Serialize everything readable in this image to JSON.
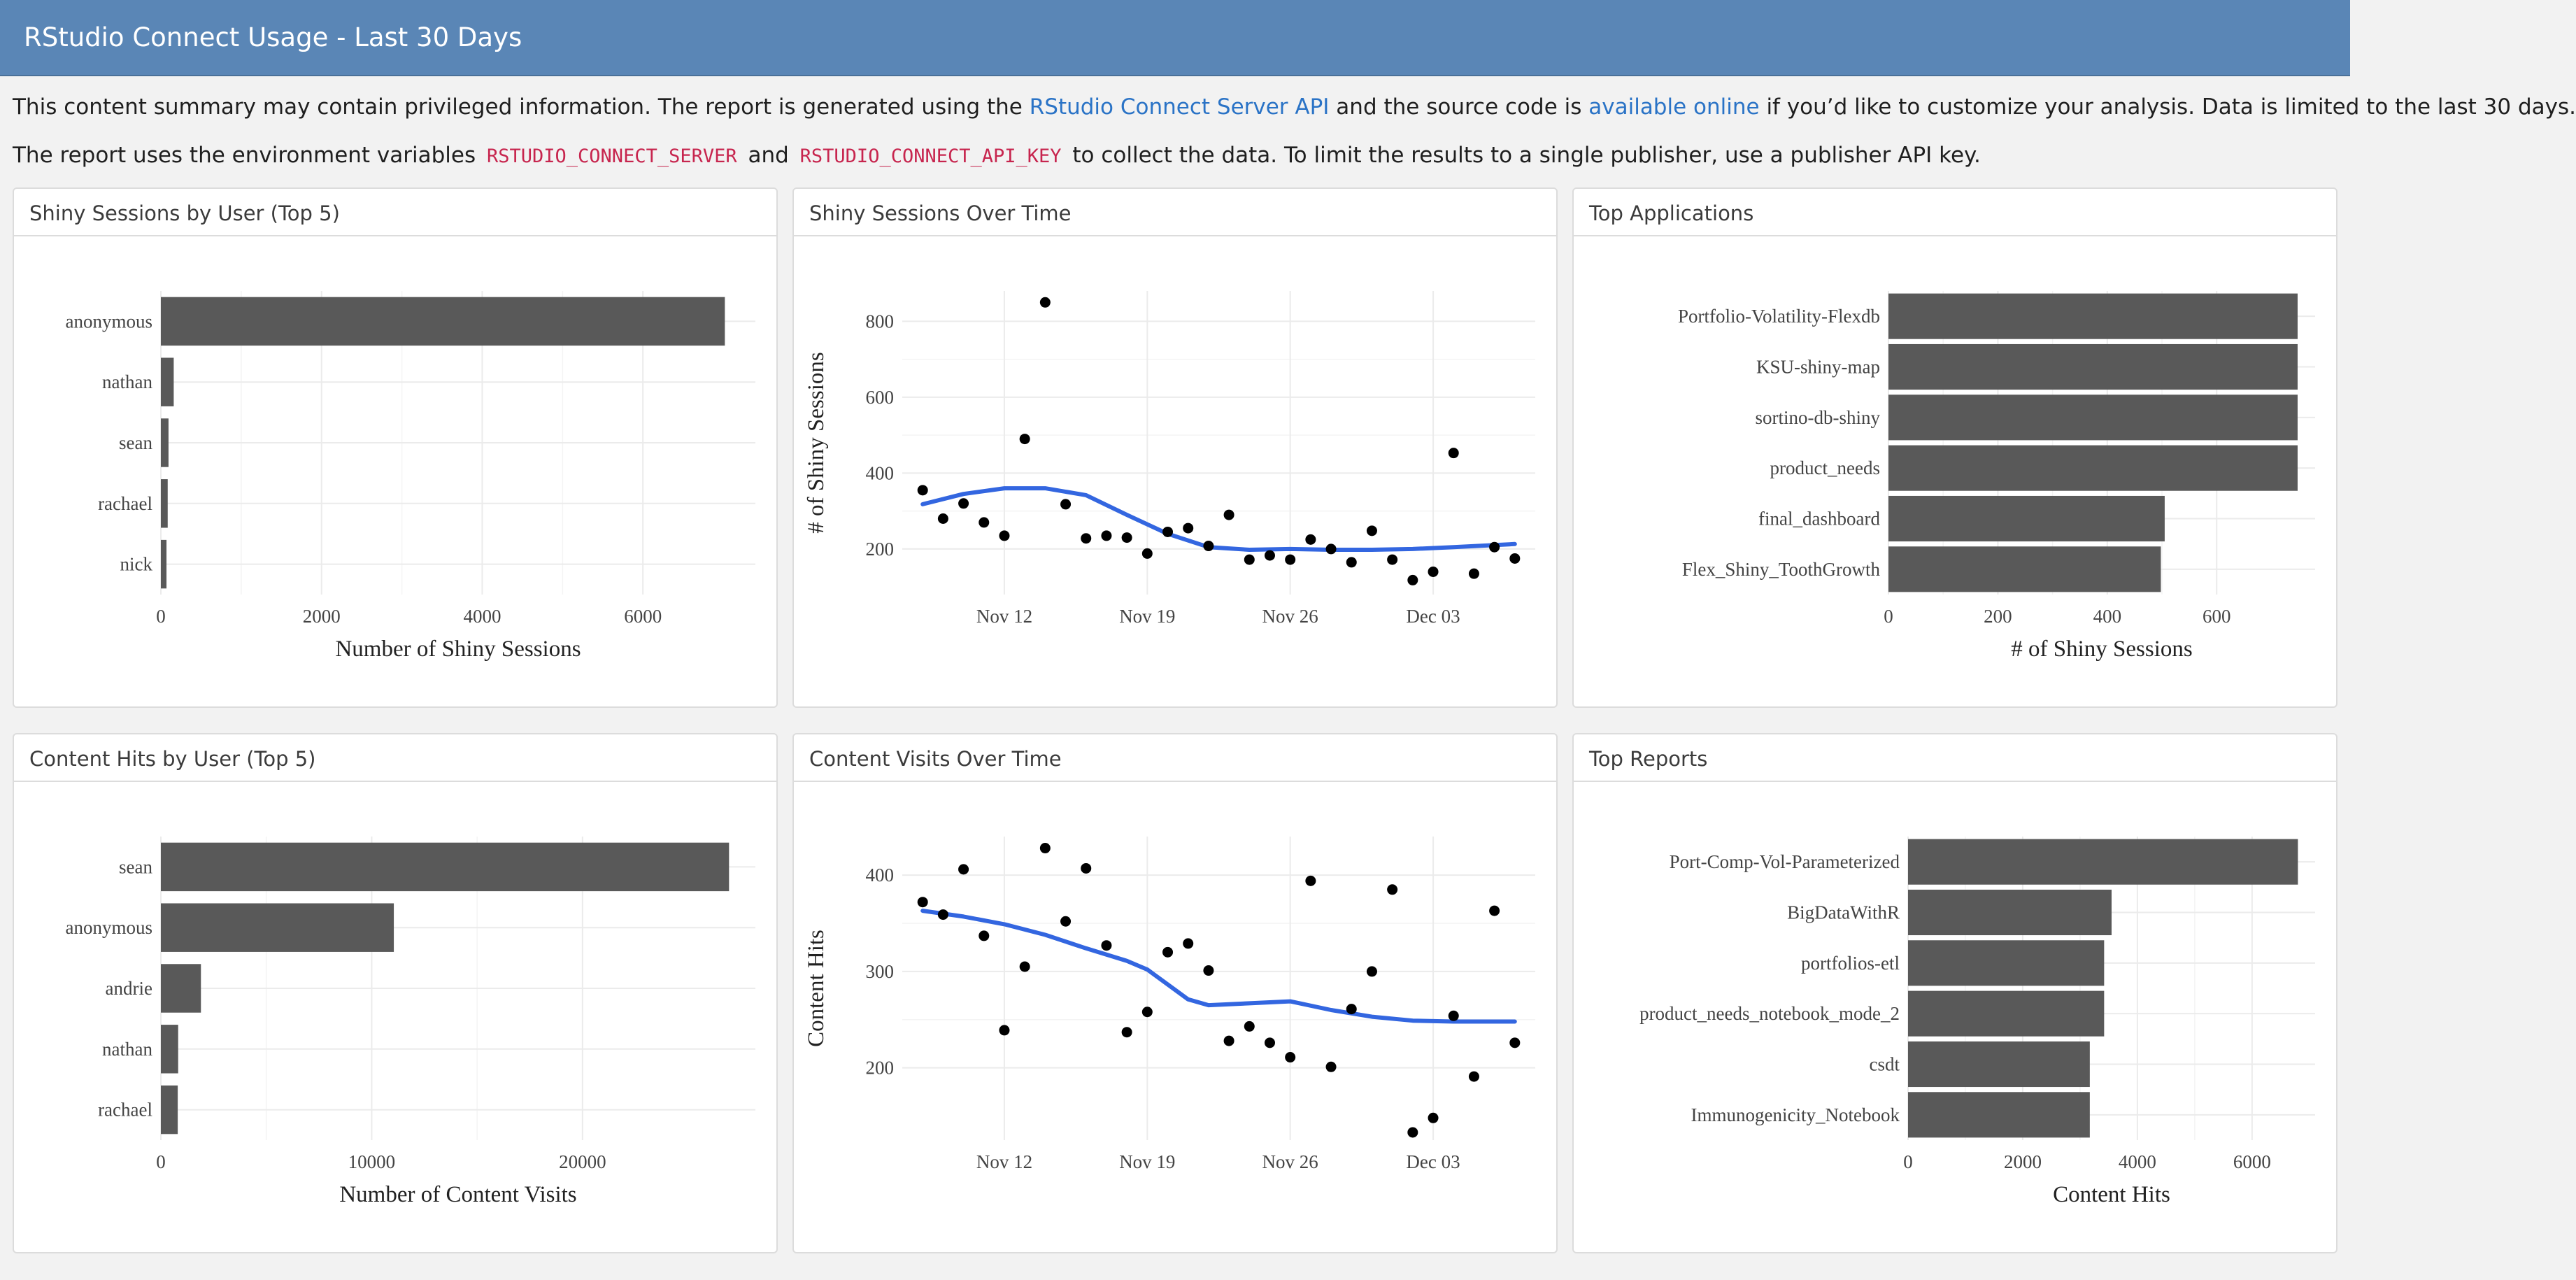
{
  "header": {
    "title": "RStudio Connect Usage - Last 30 Days"
  },
  "intro": {
    "p1_a": "This content summary may contain privileged information. The report is generated using the ",
    "p1_link1": "RStudio Connect Server API",
    "p1_b": " and the source code is ",
    "p1_link2": "available online",
    "p1_c": " if you’d like to customize your analysis. Data is limited to the last 30 days.",
    "p2_a": "The report uses the environment variables ",
    "p2_code1": "RSTUDIO_CONNECT_SERVER",
    "p2_b": " and ",
    "p2_code2": "RSTUDIO_CONNECT_API_KEY",
    "p2_c": " to collect the data. To limit the results to a single publisher, use a publisher API key."
  },
  "colors": {
    "header_bg": "#5a86b6",
    "bar": "#595959",
    "smooth_line": "#3366e0",
    "point": "#000000",
    "grid": "#ebebeb",
    "link": "#2a73c6",
    "code": "#c7254e"
  },
  "panels": {
    "p1": {
      "title": "Shiny Sessions by User (Top 5)"
    },
    "p2": {
      "title": "Shiny Sessions Over Time"
    },
    "p3": {
      "title": "Top Applications"
    },
    "p4": {
      "title": "Content Hits by User (Top 5)"
    },
    "p5": {
      "title": "Content Visits Over Time"
    },
    "p6": {
      "title": "Top Reports"
    }
  },
  "chart_data": [
    {
      "id": "p1",
      "type": "bar",
      "orientation": "horizontal",
      "categories": [
        "anonymous",
        "nathan",
        "sean",
        "rachael",
        "nick"
      ],
      "values": [
        7020,
        160,
        95,
        85,
        70
      ],
      "xlabel": "Number of Shiny Sessions",
      "ylabel": "",
      "xlim": [
        0,
        7400
      ],
      "xticks": [
        0,
        2000,
        4000,
        6000
      ],
      "grid": true
    },
    {
      "id": "p2",
      "type": "scatter",
      "xlabel": "",
      "ylabel": "# of Shiny Sessions",
      "xlim": [
        "2018-11-07",
        "2018-12-08"
      ],
      "ylim": [
        80,
        880
      ],
      "xticks": [
        {
          "date": "2018-11-12",
          "label": "Nov 12"
        },
        {
          "date": "2018-11-19",
          "label": "Nov 19"
        },
        {
          "date": "2018-11-26",
          "label": "Nov 26"
        },
        {
          "date": "2018-12-03",
          "label": "Dec 03"
        }
      ],
      "yticks": [
        200,
        400,
        600,
        800
      ],
      "grid": true,
      "points": [
        {
          "x": "2018-11-08",
          "y": 355
        },
        {
          "x": "2018-11-09",
          "y": 280
        },
        {
          "x": "2018-11-10",
          "y": 320
        },
        {
          "x": "2018-11-11",
          "y": 270
        },
        {
          "x": "2018-11-12",
          "y": 235
        },
        {
          "x": "2018-11-13",
          "y": 490
        },
        {
          "x": "2018-11-14",
          "y": 850
        },
        {
          "x": "2018-11-15",
          "y": 318
        },
        {
          "x": "2018-11-16",
          "y": 228
        },
        {
          "x": "2018-11-17",
          "y": 235
        },
        {
          "x": "2018-11-18",
          "y": 230
        },
        {
          "x": "2018-11-19",
          "y": 188
        },
        {
          "x": "2018-11-20",
          "y": 245
        },
        {
          "x": "2018-11-21",
          "y": 255
        },
        {
          "x": "2018-11-22",
          "y": 208
        },
        {
          "x": "2018-11-23",
          "y": 290
        },
        {
          "x": "2018-11-24",
          "y": 172
        },
        {
          "x": "2018-11-25",
          "y": 183
        },
        {
          "x": "2018-11-26",
          "y": 172
        },
        {
          "x": "2018-11-27",
          "y": 225
        },
        {
          "x": "2018-11-28",
          "y": 200
        },
        {
          "x": "2018-11-29",
          "y": 165
        },
        {
          "x": "2018-11-30",
          "y": 248
        },
        {
          "x": "2018-12-01",
          "y": 172
        },
        {
          "x": "2018-12-02",
          "y": 118
        },
        {
          "x": "2018-12-03",
          "y": 140
        },
        {
          "x": "2018-12-04",
          "y": 453
        },
        {
          "x": "2018-12-05",
          "y": 135
        },
        {
          "x": "2018-12-06",
          "y": 205
        },
        {
          "x": "2018-12-07",
          "y": 175
        }
      ],
      "smooth": [
        {
          "x": "2018-11-08",
          "y": 318
        },
        {
          "x": "2018-11-10",
          "y": 345
        },
        {
          "x": "2018-11-12",
          "y": 360
        },
        {
          "x": "2018-11-14",
          "y": 360
        },
        {
          "x": "2018-11-16",
          "y": 342
        },
        {
          "x": "2018-11-18",
          "y": 290
        },
        {
          "x": "2018-11-20",
          "y": 240
        },
        {
          "x": "2018-11-22",
          "y": 205
        },
        {
          "x": "2018-11-24",
          "y": 198
        },
        {
          "x": "2018-11-26",
          "y": 200
        },
        {
          "x": "2018-11-28",
          "y": 198
        },
        {
          "x": "2018-11-30",
          "y": 198
        },
        {
          "x": "2018-12-02",
          "y": 200
        },
        {
          "x": "2018-12-04",
          "y": 205
        },
        {
          "x": "2018-12-07",
          "y": 213
        }
      ]
    },
    {
      "id": "p3",
      "type": "bar",
      "orientation": "horizontal",
      "categories": [
        "Portfolio-Volatility-Flexdb",
        "KSU-shiny-map",
        "sortino-db-shiny",
        "product_needs",
        "final_dashboard",
        "Flex_Shiny_ToothGrowth"
      ],
      "values": [
        748,
        748,
        748,
        748,
        505,
        498
      ],
      "xlabel": "# of Shiny Sessions",
      "ylabel": "",
      "xlim": [
        0,
        780
      ],
      "xticks": [
        0,
        200,
        400,
        600
      ],
      "grid": true
    },
    {
      "id": "p4",
      "type": "bar",
      "orientation": "horizontal",
      "categories": [
        "sean",
        "anonymous",
        "andrie",
        "nathan",
        "rachael"
      ],
      "values": [
        26950,
        11050,
        1900,
        820,
        800
      ],
      "xlabel": "Number of Content Visits",
      "ylabel": "",
      "xlim": [
        0,
        28200
      ],
      "xticks": [
        0,
        10000,
        20000
      ],
      "grid": true
    },
    {
      "id": "p5",
      "type": "scatter",
      "xlabel": "",
      "ylabel": "Content Hits",
      "xlim": [
        "2018-11-07",
        "2018-12-08"
      ],
      "ylim": [
        125,
        440
      ],
      "xticks": [
        {
          "date": "2018-11-12",
          "label": "Nov 12"
        },
        {
          "date": "2018-11-19",
          "label": "Nov 19"
        },
        {
          "date": "2018-11-26",
          "label": "Nov 26"
        },
        {
          "date": "2018-12-03",
          "label": "Dec 03"
        }
      ],
      "yticks": [
        200,
        300,
        400
      ],
      "grid": true,
      "points": [
        {
          "x": "2018-11-08",
          "y": 372
        },
        {
          "x": "2018-11-09",
          "y": 359
        },
        {
          "x": "2018-11-10",
          "y": 406
        },
        {
          "x": "2018-11-11",
          "y": 337
        },
        {
          "x": "2018-11-12",
          "y": 239
        },
        {
          "x": "2018-11-13",
          "y": 305
        },
        {
          "x": "2018-11-14",
          "y": 428
        },
        {
          "x": "2018-11-15",
          "y": 352
        },
        {
          "x": "2018-11-16",
          "y": 407
        },
        {
          "x": "2018-11-17",
          "y": 327
        },
        {
          "x": "2018-11-18",
          "y": 237
        },
        {
          "x": "2018-11-19",
          "y": 258
        },
        {
          "x": "2018-11-20",
          "y": 320
        },
        {
          "x": "2018-11-21",
          "y": 329
        },
        {
          "x": "2018-11-22",
          "y": 301
        },
        {
          "x": "2018-11-23",
          "y": 228
        },
        {
          "x": "2018-11-24",
          "y": 243
        },
        {
          "x": "2018-11-25",
          "y": 226
        },
        {
          "x": "2018-11-26",
          "y": 211
        },
        {
          "x": "2018-11-27",
          "y": 394
        },
        {
          "x": "2018-11-28",
          "y": 201
        },
        {
          "x": "2018-11-29",
          "y": 261
        },
        {
          "x": "2018-11-30",
          "y": 300
        },
        {
          "x": "2018-12-01",
          "y": 385
        },
        {
          "x": "2018-12-02",
          "y": 133
        },
        {
          "x": "2018-12-03",
          "y": 148
        },
        {
          "x": "2018-12-04",
          "y": 254
        },
        {
          "x": "2018-12-05",
          "y": 191
        },
        {
          "x": "2018-12-06",
          "y": 363
        },
        {
          "x": "2018-12-07",
          "y": 226
        }
      ],
      "smooth": [
        {
          "x": "2018-11-08",
          "y": 363
        },
        {
          "x": "2018-11-10",
          "y": 357
        },
        {
          "x": "2018-11-12",
          "y": 349
        },
        {
          "x": "2018-11-14",
          "y": 338
        },
        {
          "x": "2018-11-16",
          "y": 324
        },
        {
          "x": "2018-11-18",
          "y": 311
        },
        {
          "x": "2018-11-19",
          "y": 302
        },
        {
          "x": "2018-11-21",
          "y": 271
        },
        {
          "x": "2018-11-22",
          "y": 265
        },
        {
          "x": "2018-11-24",
          "y": 267
        },
        {
          "x": "2018-11-26",
          "y": 269
        },
        {
          "x": "2018-11-28",
          "y": 260
        },
        {
          "x": "2018-11-30",
          "y": 253
        },
        {
          "x": "2018-12-02",
          "y": 249
        },
        {
          "x": "2018-12-04",
          "y": 248
        },
        {
          "x": "2018-12-07",
          "y": 248
        }
      ]
    },
    {
      "id": "p6",
      "type": "bar",
      "orientation": "horizontal",
      "categories": [
        "Port-Comp-Vol-Parameterized",
        "BigDataWithR",
        "portfolios-etl",
        "product_needs_notebook_mode_2",
        "csdt",
        "Immunogenicity_Notebook"
      ],
      "values": [
        6800,
        3550,
        3420,
        3420,
        3170,
        3170
      ],
      "xlabel": "Content Hits",
      "ylabel": "",
      "xlim": [
        0,
        7100
      ],
      "xticks": [
        0,
        2000,
        4000,
        6000
      ],
      "grid": true
    }
  ]
}
